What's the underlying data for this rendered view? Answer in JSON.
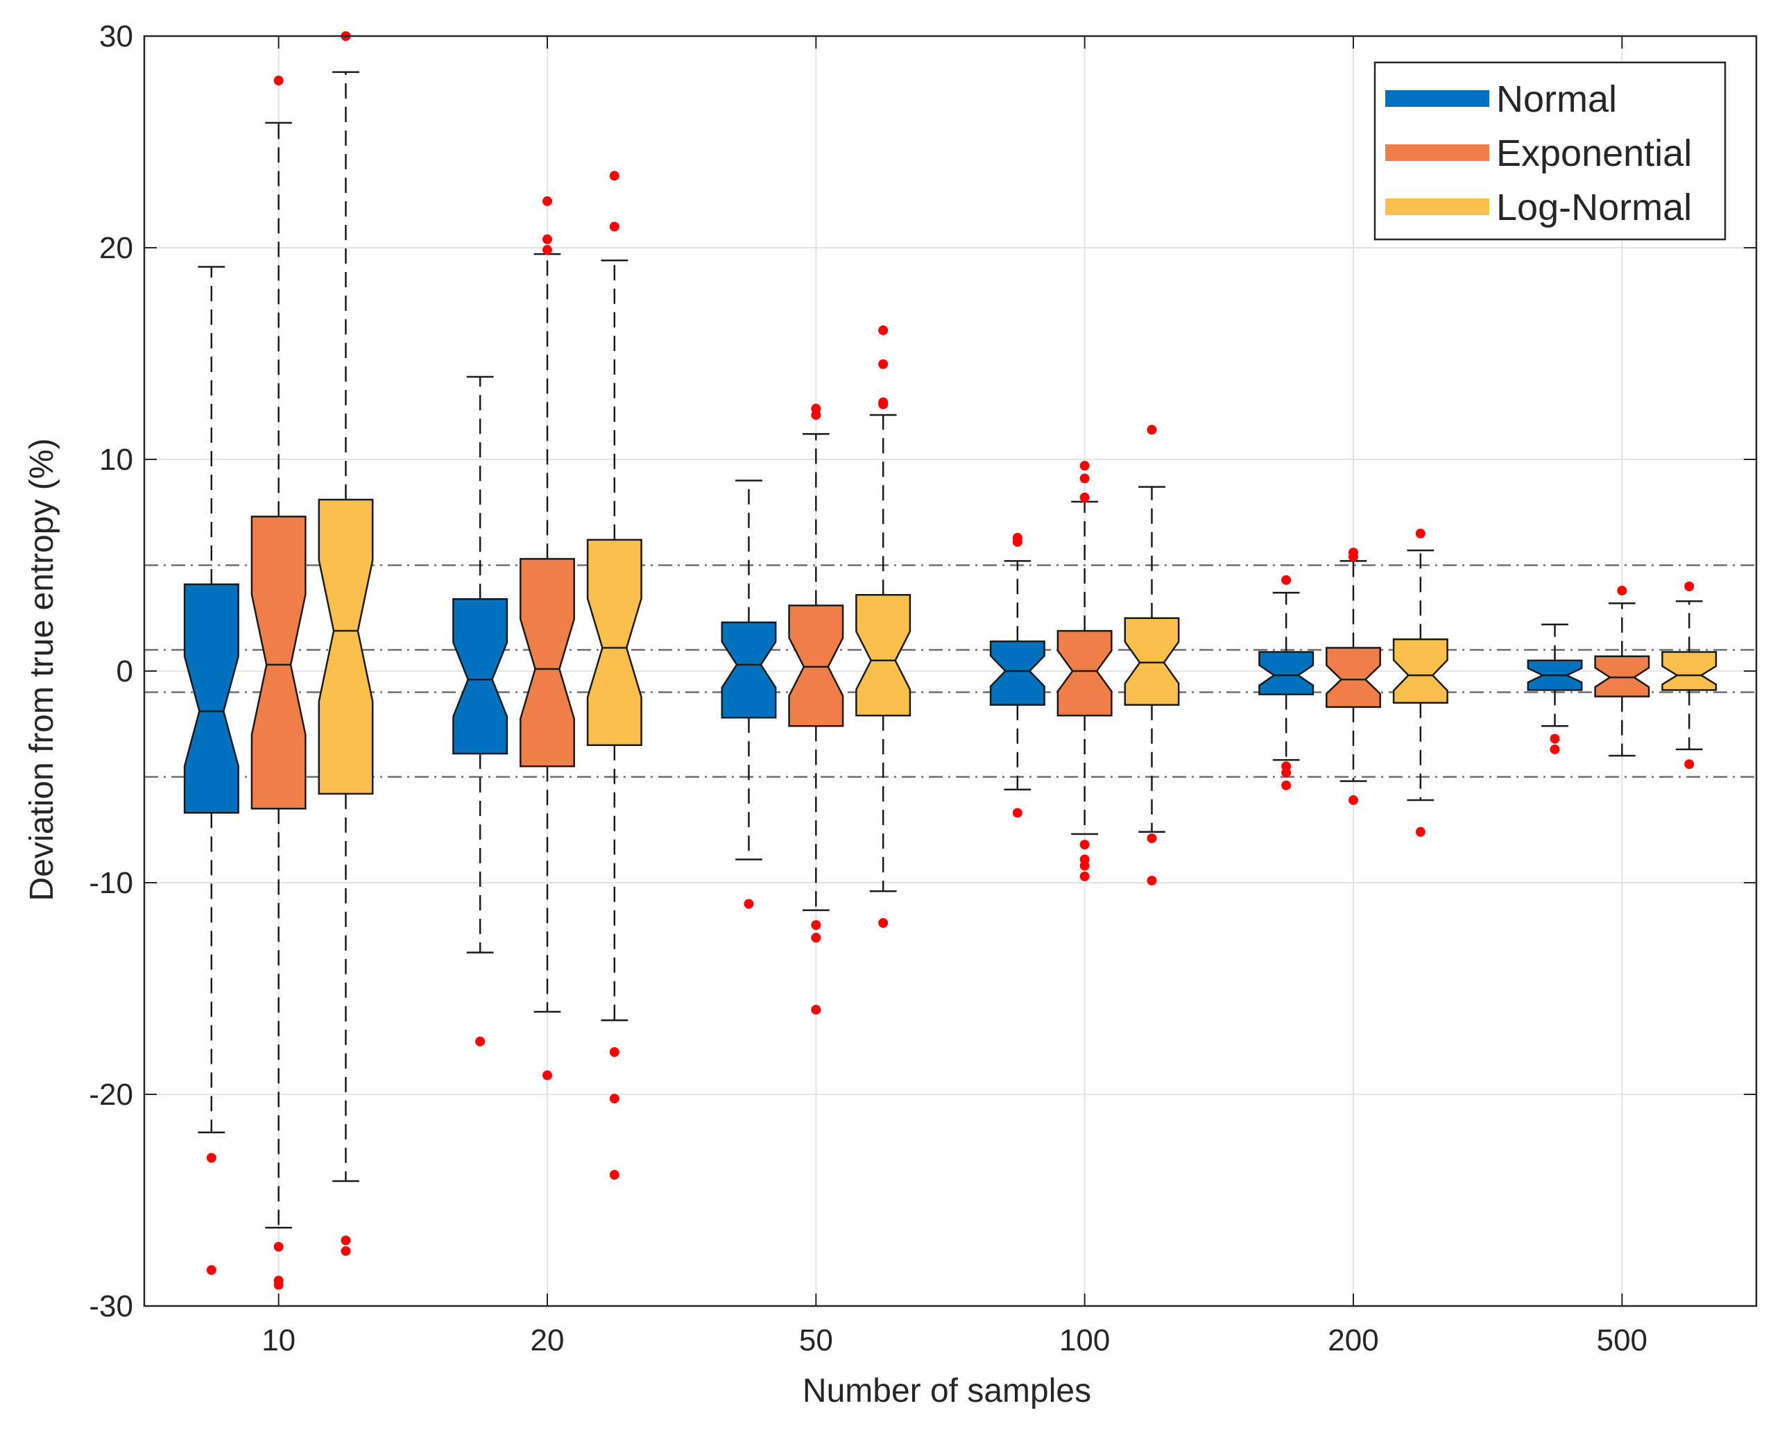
{
  "chart_data": {
    "type": "box",
    "xlabel": "Number of samples",
    "ylabel": "Deviation from true entropy (%)",
    "ylim": [
      -30,
      30
    ],
    "yticks": [
      -30,
      -20,
      -10,
      0,
      10,
      20,
      30
    ],
    "categories": [
      "10",
      "20",
      "50",
      "100",
      "200",
      "500"
    ],
    "grid": true,
    "legend_position": "top-right",
    "reference_lines": [
      -5,
      -1,
      1,
      5
    ],
    "series": [
      {
        "name": "Normal",
        "color": "#0072BD",
        "boxes": [
          {
            "whisker_low": -21.8,
            "q1": -6.7,
            "median": -1.9,
            "q3": 4.1,
            "whisker_high": 19.1,
            "outliers": [
              -23.0,
              -28.3
            ]
          },
          {
            "whisker_low": -13.3,
            "q1": -3.9,
            "median": -0.4,
            "q3": 3.4,
            "whisker_high": 13.9,
            "outliers": [
              -17.5
            ]
          },
          {
            "whisker_low": -8.9,
            "q1": -2.2,
            "median": 0.3,
            "q3": 2.3,
            "whisker_high": 9.0,
            "outliers": [
              -11.0
            ]
          },
          {
            "whisker_low": -5.6,
            "q1": -1.6,
            "median": 0.0,
            "q3": 1.4,
            "whisker_high": 5.2,
            "outliers": [
              6.3,
              6.1,
              -6.7
            ]
          },
          {
            "whisker_low": -4.2,
            "q1": -1.1,
            "median": -0.2,
            "q3": 0.9,
            "whisker_high": 3.7,
            "outliers": [
              4.3,
              -4.5,
              -4.8,
              -5.4
            ]
          },
          {
            "whisker_low": -2.6,
            "q1": -0.9,
            "median": -0.2,
            "q3": 0.5,
            "whisker_high": 2.2,
            "outliers": [
              -3.2,
              -3.7
            ]
          }
        ]
      },
      {
        "name": "Exponential",
        "color": "#F07E49",
        "boxes": [
          {
            "whisker_low": -26.3,
            "q1": -6.5,
            "median": 0.3,
            "q3": 7.3,
            "whisker_high": 25.9,
            "outliers": [
              27.9,
              -27.2,
              -28.8,
              -29.0
            ]
          },
          {
            "whisker_low": -16.1,
            "q1": -4.5,
            "median": 0.1,
            "q3": 5.3,
            "whisker_high": 19.7,
            "outliers": [
              22.2,
              20.4,
              19.9,
              -19.1
            ]
          },
          {
            "whisker_low": -11.3,
            "q1": -2.6,
            "median": 0.2,
            "q3": 3.1,
            "whisker_high": 11.2,
            "outliers": [
              12.4,
              12.1,
              -12.0,
              -12.6,
              -16.0
            ]
          },
          {
            "whisker_low": -7.7,
            "q1": -2.1,
            "median": 0.0,
            "q3": 1.9,
            "whisker_high": 8.0,
            "outliers": [
              9.7,
              9.1,
              8.2,
              -8.2,
              -8.9,
              -9.2,
              -9.7
            ]
          },
          {
            "whisker_low": -5.2,
            "q1": -1.7,
            "median": -0.4,
            "q3": 1.1,
            "whisker_high": 5.2,
            "outliers": [
              5.6,
              5.4,
              -6.1
            ]
          },
          {
            "whisker_low": -4.0,
            "q1": -1.2,
            "median": -0.3,
            "q3": 0.7,
            "whisker_high": 3.2,
            "outliers": [
              3.8
            ]
          }
        ]
      },
      {
        "name": "Log-Normal",
        "color": "#FBC04C",
        "boxes": [
          {
            "whisker_low": -24.1,
            "q1": -5.8,
            "median": 1.9,
            "q3": 8.1,
            "whisker_high": 28.3,
            "outliers": [
              30.0,
              -26.9,
              -27.4
            ]
          },
          {
            "whisker_low": -16.5,
            "q1": -3.5,
            "median": 1.1,
            "q3": 6.2,
            "whisker_high": 19.4,
            "outliers": [
              23.4,
              21.0,
              -18.0,
              -20.2,
              -23.8
            ]
          },
          {
            "whisker_low": -10.4,
            "q1": -2.1,
            "median": 0.5,
            "q3": 3.6,
            "whisker_high": 12.1,
            "outliers": [
              16.1,
              14.5,
              12.7,
              12.6,
              -11.9
            ]
          },
          {
            "whisker_low": -7.6,
            "q1": -1.6,
            "median": 0.4,
            "q3": 2.5,
            "whisker_high": 8.7,
            "outliers": [
              11.4,
              -7.9,
              -9.9
            ]
          },
          {
            "whisker_low": -6.1,
            "q1": -1.5,
            "median": -0.2,
            "q3": 1.5,
            "whisker_high": 5.7,
            "outliers": [
              6.5,
              -7.6
            ]
          },
          {
            "whisker_low": -3.7,
            "q1": -0.9,
            "median": -0.2,
            "q3": 0.9,
            "whisker_high": 3.3,
            "outliers": [
              4.0,
              -4.4
            ]
          }
        ]
      }
    ]
  }
}
